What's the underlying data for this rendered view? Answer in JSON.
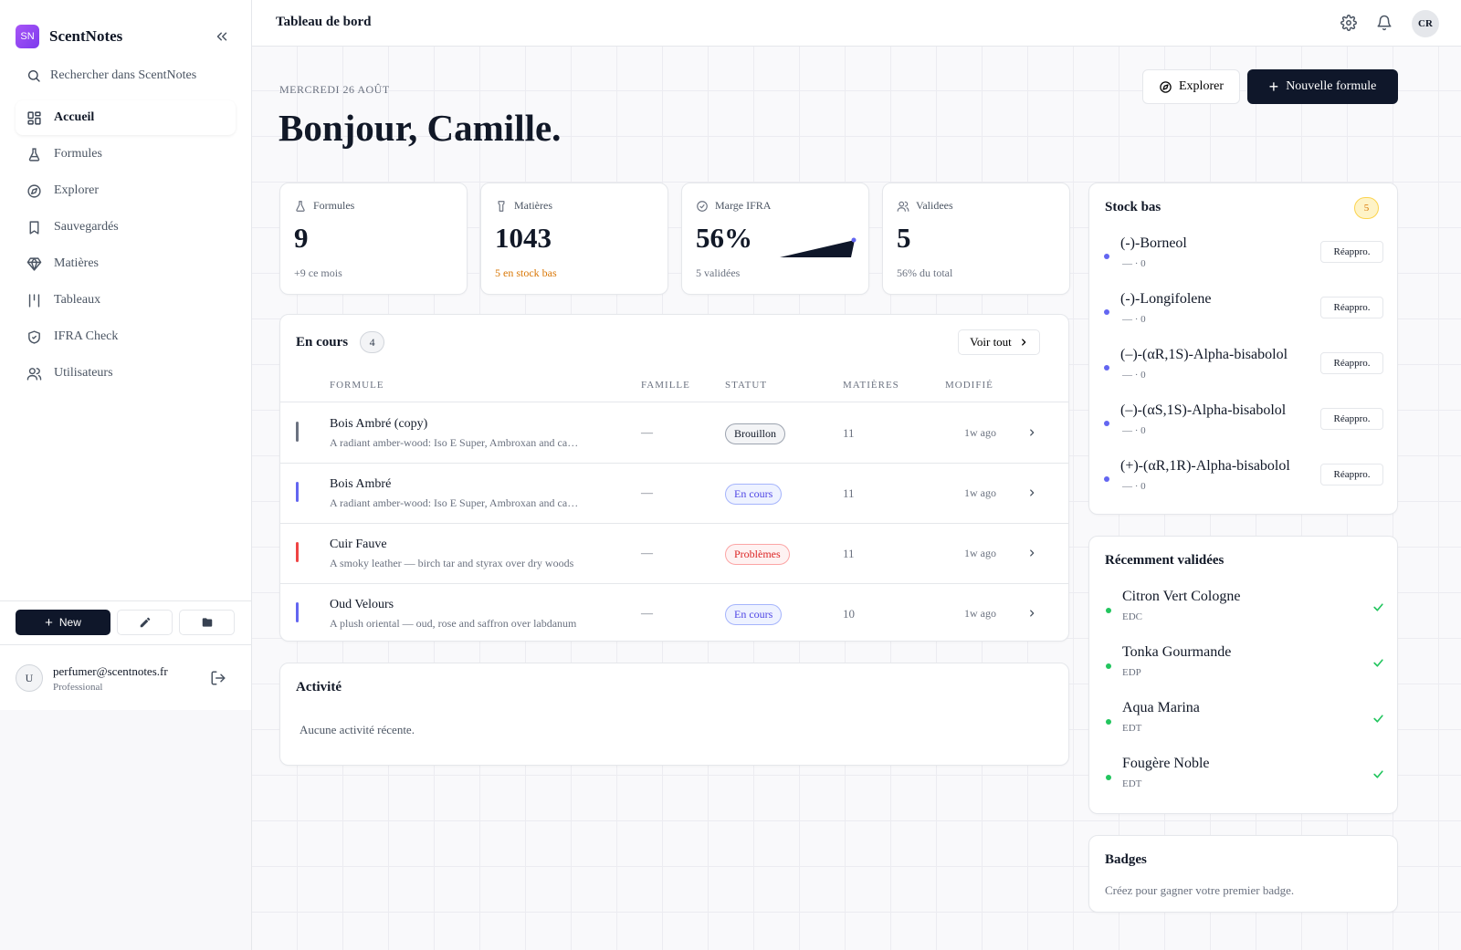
{
  "app": {
    "logo_text": "SN",
    "name": "ScentNotes"
  },
  "sidebar": {
    "search_placeholder": "Rechercher dans ScentNotes",
    "items": [
      {
        "label": "Accueil",
        "icon": "dashboard-icon",
        "active": true
      },
      {
        "label": "Formules",
        "icon": "flask-icon"
      },
      {
        "label": "Explorer",
        "icon": "compass-icon"
      },
      {
        "label": "Sauvegardés",
        "icon": "bookmark-icon"
      },
      {
        "label": "Matières",
        "icon": "gem-icon"
      },
      {
        "label": "Tableaux",
        "icon": "board-icon"
      },
      {
        "label": "IFRA Check",
        "icon": "shield-check-icon"
      },
      {
        "label": "Utilisateurs",
        "icon": "users-icon"
      }
    ],
    "new_label": "New",
    "user": {
      "avatar": "U",
      "email": "perfumer@scentnotes.fr",
      "plan": "Professional"
    }
  },
  "topbar": {
    "title": "Tableau de bord",
    "avatar": "CR"
  },
  "header": {
    "date": "MERCREDI 26 AOÛT",
    "greeting": "Bonjour, Camille.",
    "explore_label": "Explorer",
    "new_formula_label": "Nouvelle formule"
  },
  "stats": [
    {
      "label": "Formules",
      "icon": "flask-icon",
      "value": "9",
      "sub": "+9 ce mois",
      "sub_color": "#6b7280"
    },
    {
      "label": "Matières",
      "icon": "bottle-icon",
      "value": "1043",
      "sub": "5 en stock bas",
      "sub_color": "#d97706"
    },
    {
      "label": "Marge IFRA",
      "icon": "check-circle-icon",
      "value": "56%",
      "sub": "5 validées",
      "sub_color": "#6b7280"
    },
    {
      "label": "Validees",
      "icon": "users-icon",
      "value": "5",
      "sub": "56% du total",
      "sub_color": "#6b7280"
    }
  ],
  "en_cours": {
    "title": "En cours",
    "count": "4",
    "see_all": "Voir tout",
    "columns": [
      "FORMULE",
      "FAMILLE",
      "STATUT",
      "MATIÈRES",
      "MODIFIÉ"
    ],
    "rows": [
      {
        "name": "Bois Ambré (copy)",
        "desc": "A radiant amber-wood: Iso E Super, Ambroxan and cashmeran",
        "family": "—",
        "status": "Brouillon",
        "materials": "11",
        "modified": "1w ago",
        "bar_color": "#6b7280",
        "status_bg": "#f3f4f6",
        "status_border": "#9ca3af",
        "status_color": "#111827"
      },
      {
        "name": "Bois Ambré",
        "desc": "A radiant amber-wood: Iso E Super, Ambroxan and cashmeran",
        "family": "—",
        "status": "En cours",
        "materials": "11",
        "modified": "1w ago",
        "bar_color": "#6366f1",
        "status_bg": "#eef2ff",
        "status_border": "#a5b4fc",
        "status_color": "#4f46e5"
      },
      {
        "name": "Cuir Fauve",
        "desc": "A smoky leather — birch tar and styrax over dry woods",
        "family": "—",
        "status": "Problèmes",
        "materials": "11",
        "modified": "1w ago",
        "bar_color": "#ef4444",
        "status_bg": "#fef2f2",
        "status_border": "#fca5a5",
        "status_color": "#dc2626"
      },
      {
        "name": "Oud Velours",
        "desc": "A plush oriental — oud, rose and saffron over labdanum",
        "family": "—",
        "status": "En cours",
        "materials": "10",
        "modified": "1w ago",
        "bar_color": "#6366f1",
        "status_bg": "#eef2ff",
        "status_border": "#a5b4fc",
        "status_color": "#4f46e5"
      }
    ]
  },
  "activity": {
    "title": "Activité",
    "empty": "Aucune activité récente."
  },
  "stock_bas": {
    "title": "Stock bas",
    "count": "5",
    "action_label": "Réappro.",
    "items": [
      {
        "name": "(-)-Borneol",
        "meta": "— · 0"
      },
      {
        "name": "(-)-Longifolene",
        "meta": "— · 0"
      },
      {
        "name": "(–)-(αR,1S)-Alpha-bisabolol",
        "meta": "— · 0"
      },
      {
        "name": "(–)-(αS,1S)-Alpha-bisabolol",
        "meta": "— · 0"
      },
      {
        "name": "(+)-(αR,1R)-Alpha-bisabolol",
        "meta": "— · 0"
      }
    ]
  },
  "recent": {
    "title": "Récemment validées",
    "items": [
      {
        "name": "Citron Vert Cologne",
        "type": "EDC"
      },
      {
        "name": "Tonka Gourmande",
        "type": "EDP"
      },
      {
        "name": "Aqua Marina",
        "type": "EDT"
      },
      {
        "name": "Fougère Noble",
        "type": "EDT"
      }
    ]
  },
  "badges": {
    "title": "Badges",
    "empty": "Créez pour gagner votre premier badge."
  }
}
